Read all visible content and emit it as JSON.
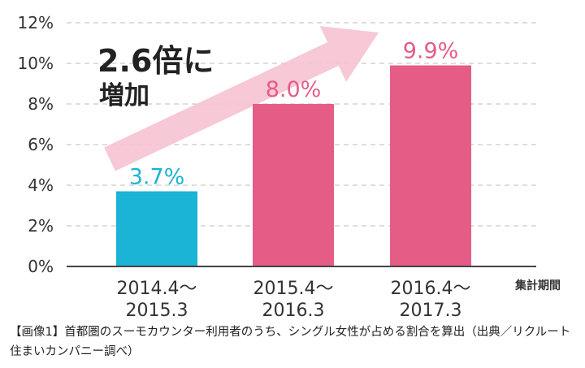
{
  "chart_data": {
    "type": "bar",
    "categories": [
      [
        "2014.4～",
        "2015.3"
      ],
      [
        "2015.4～",
        "2016.3"
      ],
      [
        "2016.4～",
        "2017.3"
      ]
    ],
    "values": [
      3.7,
      8.0,
      9.9
    ],
    "data_labels": [
      "3.7%",
      "8.0%",
      "9.9%"
    ],
    "bar_colors": [
      "#1bb3d6",
      "#e55c86",
      "#e55c86"
    ],
    "ylim": [
      0,
      12
    ],
    "yticks": [
      0,
      2,
      4,
      6,
      8,
      10,
      12
    ],
    "ytick_labels": [
      "0%",
      "2%",
      "4%",
      "6%",
      "8%",
      "10%",
      "12%"
    ],
    "grid": true,
    "xlabel": "集計期間",
    "annotation": {
      "line1": "2.6倍に",
      "line2": "増加"
    },
    "arrow_color": "#f6c2d0"
  },
  "caption": "【画像1】首都圏のスーモカウンター利用者のうち、シングル女性が占める割合を算出（出典／リクルート住まいカンパニー調べ）"
}
